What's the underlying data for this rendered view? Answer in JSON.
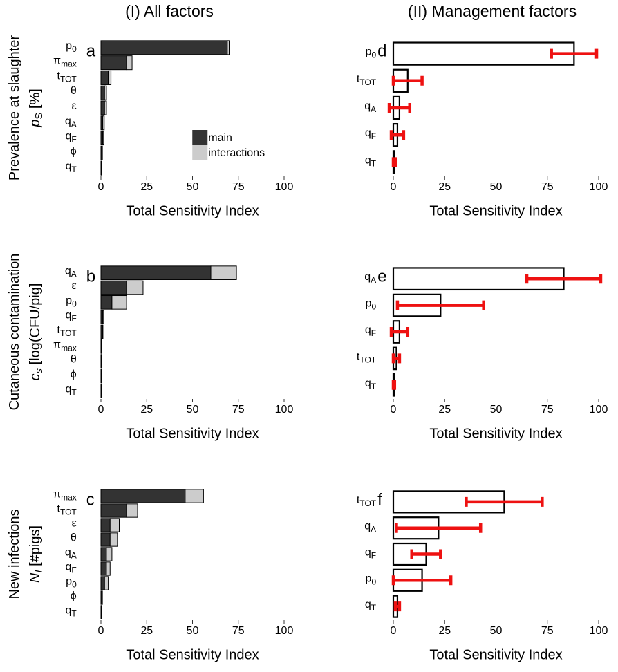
{
  "column_titles": [
    "(I) All factors",
    "(II) Management factors"
  ],
  "chart_data": [
    {
      "type": "stacked_bar",
      "label": "a",
      "xlabel": "Total Sensitivity Index",
      "xlim": [
        -5,
        105
      ],
      "xticks": [
        0,
        25,
        50,
        75,
        100
      ],
      "legend": "bottom-right",
      "ylabel": [
        {
          "parts": [
            {
              "text": "Prevalence at slaughter"
            }
          ]
        },
        {
          "parts": [
            {
              "text": "p",
              "style": "italic"
            },
            {
              "text": "S",
              "style": "sub"
            },
            {
              "text": " [%]"
            }
          ]
        }
      ],
      "categories": [
        {
          "parts": [
            {
              "text": "p"
            },
            {
              "text": "0",
              "style": "sub"
            }
          ],
          "color": "#000000"
        },
        {
          "parts": [
            {
              "text": "π"
            },
            {
              "text": "max",
              "style": "sub"
            }
          ],
          "color": "#e41a1c"
        },
        {
          "parts": [
            {
              "text": "t"
            },
            {
              "text": "TOT",
              "style": "sub"
            }
          ],
          "color": "#000000"
        },
        {
          "parts": [
            {
              "text": "θ"
            }
          ],
          "color": "#e41a1c"
        },
        {
          "parts": [
            {
              "text": "ε"
            }
          ],
          "color": "#e41a1c"
        },
        {
          "parts": [
            {
              "text": "q"
            },
            {
              "text": "A",
              "style": "sub"
            }
          ],
          "color": "#000000"
        },
        {
          "parts": [
            {
              "text": "q"
            },
            {
              "text": "F",
              "style": "sub"
            }
          ],
          "color": "#000000"
        },
        {
          "parts": [
            {
              "text": "ϕ"
            }
          ],
          "color": "#e41a1c"
        },
        {
          "parts": [
            {
              "text": "q"
            },
            {
              "text": "T",
              "style": "sub"
            }
          ],
          "color": "#000000"
        }
      ],
      "series": [
        {
          "name": "main",
          "color": "#333333",
          "values": [
            69,
            14,
            4,
            2,
            2,
            1,
            1,
            0.5,
            0.3
          ]
        },
        {
          "name": "interactions",
          "color": "#cccccc",
          "values": [
            1,
            3,
            1.5,
            1,
            1,
            0.8,
            0.5,
            0.3,
            0.2
          ]
        }
      ]
    },
    {
      "type": "stacked_bar",
      "label": "b",
      "xlabel": "Total Sensitivity Index",
      "xlim": [
        -5,
        105
      ],
      "xticks": [
        0,
        25,
        50,
        75,
        100
      ],
      "ylabel": [
        {
          "parts": [
            {
              "text": "Cutaneous contamination"
            }
          ]
        },
        {
          "parts": [
            {
              "text": "c",
              "style": "italic"
            },
            {
              "text": "s",
              "style": "sub-italic"
            },
            {
              "text": "  [log(CFU/pig]"
            }
          ]
        }
      ],
      "categories": [
        {
          "parts": [
            {
              "text": "q"
            },
            {
              "text": "A",
              "style": "sub"
            }
          ],
          "color": "#000000"
        },
        {
          "parts": [
            {
              "text": "ε"
            }
          ],
          "color": "#e41a1c"
        },
        {
          "parts": [
            {
              "text": "p"
            },
            {
              "text": "0",
              "style": "sub"
            }
          ],
          "color": "#000000"
        },
        {
          "parts": [
            {
              "text": "q"
            },
            {
              "text": "F",
              "style": "sub"
            }
          ],
          "color": "#000000"
        },
        {
          "parts": [
            {
              "text": "t"
            },
            {
              "text": "TOT",
              "style": "sub"
            }
          ],
          "color": "#000000"
        },
        {
          "parts": [
            {
              "text": "π"
            },
            {
              "text": "max",
              "style": "sub"
            }
          ],
          "color": "#e41a1c"
        },
        {
          "parts": [
            {
              "text": "θ"
            }
          ],
          "color": "#e41a1c"
        },
        {
          "parts": [
            {
              "text": "ϕ"
            }
          ],
          "color": "#e41a1c"
        },
        {
          "parts": [
            {
              "text": "q"
            },
            {
              "text": "T",
              "style": "sub"
            }
          ],
          "color": "#000000"
        }
      ],
      "series": [
        {
          "name": "main",
          "color": "#333333",
          "values": [
            60,
            14,
            6,
            1,
            0.8,
            0.3,
            0.2,
            0.2,
            0.1
          ]
        },
        {
          "name": "interactions",
          "color": "#cccccc",
          "values": [
            14,
            9,
            8,
            0.5,
            0.3,
            0.2,
            0.2,
            0.1,
            0.1
          ]
        }
      ]
    },
    {
      "type": "stacked_bar",
      "label": "c",
      "xlabel": "Total Sensitivity Index",
      "xlim": [
        -5,
        105
      ],
      "xticks": [
        0,
        25,
        50,
        75,
        100
      ],
      "ylabel": [
        {
          "parts": [
            {
              "text": "New infections"
            }
          ]
        },
        {
          "parts": [
            {
              "text": "N",
              "style": "italic"
            },
            {
              "text": "I",
              "style": "sub-italic"
            },
            {
              "text": "  [#pigs]"
            }
          ]
        }
      ],
      "categories": [
        {
          "parts": [
            {
              "text": "π"
            },
            {
              "text": "max",
              "style": "sub"
            }
          ],
          "color": "#e41a1c"
        },
        {
          "parts": [
            {
              "text": "t"
            },
            {
              "text": "TOT",
              "style": "sub"
            }
          ],
          "color": "#000000"
        },
        {
          "parts": [
            {
              "text": "ε"
            }
          ],
          "color": "#e41a1c"
        },
        {
          "parts": [
            {
              "text": "θ"
            }
          ],
          "color": "#e41a1c"
        },
        {
          "parts": [
            {
              "text": "q"
            },
            {
              "text": "A",
              "style": "sub"
            }
          ],
          "color": "#000000"
        },
        {
          "parts": [
            {
              "text": "q"
            },
            {
              "text": "F",
              "style": "sub"
            }
          ],
          "color": "#000000"
        },
        {
          "parts": [
            {
              "text": "p"
            },
            {
              "text": "0",
              "style": "sub"
            }
          ],
          "color": "#000000"
        },
        {
          "parts": [
            {
              "text": "ϕ"
            }
          ],
          "color": "#e41a1c"
        },
        {
          "parts": [
            {
              "text": "q"
            },
            {
              "text": "T",
              "style": "sub"
            }
          ],
          "color": "#000000"
        }
      ],
      "series": [
        {
          "name": "main",
          "color": "#333333",
          "values": [
            46,
            14,
            5,
            5,
            3,
            3,
            2,
            0.5,
            0.3
          ]
        },
        {
          "name": "interactions",
          "color": "#cccccc",
          "values": [
            10,
            6,
            5,
            4,
            3,
            2,
            2,
            0.3,
            0.2
          ]
        }
      ]
    },
    {
      "type": "error_bar",
      "label": "d",
      "xlabel": "Total Sensitivity Index",
      "xlim": [
        -5,
        105
      ],
      "xticks": [
        0,
        25,
        50,
        75,
        100
      ],
      "color": "#ffffff",
      "error_color": "#ee1111",
      "categories": [
        {
          "parts": [
            {
              "text": "p"
            },
            {
              "text": "0",
              "style": "sub"
            }
          ],
          "color": "#000000"
        },
        {
          "parts": [
            {
              "text": "t"
            },
            {
              "text": "TOT",
              "style": "sub"
            }
          ],
          "color": "#000000"
        },
        {
          "parts": [
            {
              "text": "q"
            },
            {
              "text": "A",
              "style": "sub"
            }
          ],
          "color": "#000000"
        },
        {
          "parts": [
            {
              "text": "q"
            },
            {
              "text": "F",
              "style": "sub"
            }
          ],
          "color": "#000000"
        },
        {
          "parts": [
            {
              "text": "q"
            },
            {
              "text": "T",
              "style": "sub"
            }
          ],
          "color": "#000000"
        }
      ],
      "values": [
        88,
        7,
        3,
        2,
        0.5
      ],
      "errors": [
        11,
        7,
        5,
        3,
        0.5
      ]
    },
    {
      "type": "error_bar",
      "label": "e",
      "xlabel": "Total Sensitivity Index",
      "xlim": [
        -5,
        105
      ],
      "xticks": [
        0,
        25,
        50,
        75,
        100
      ],
      "color": "#ffffff",
      "error_color": "#ee1111",
      "categories": [
        {
          "parts": [
            {
              "text": "q"
            },
            {
              "text": "A",
              "style": "sub"
            }
          ],
          "color": "#000000"
        },
        {
          "parts": [
            {
              "text": "p"
            },
            {
              "text": "0",
              "style": "sub"
            }
          ],
          "color": "#000000"
        },
        {
          "parts": [
            {
              "text": "q"
            },
            {
              "text": "F",
              "style": "sub"
            }
          ],
          "color": "#000000"
        },
        {
          "parts": [
            {
              "text": "t"
            },
            {
              "text": "TOT",
              "style": "sub"
            }
          ],
          "color": "#000000"
        },
        {
          "parts": [
            {
              "text": "q"
            },
            {
              "text": "T",
              "style": "sub"
            }
          ],
          "color": "#000000"
        }
      ],
      "values": [
        83,
        23,
        3,
        1.5,
        0.3
      ],
      "errors": [
        18,
        21,
        4,
        1.5,
        0.3
      ]
    },
    {
      "type": "error_bar",
      "label": "f",
      "xlabel": "Total Sensitivity Index",
      "xlim": [
        -5,
        105
      ],
      "xticks": [
        0,
        25,
        50,
        75,
        100
      ],
      "color": "#ffffff",
      "error_color": "#ee1111",
      "categories": [
        {
          "parts": [
            {
              "text": "t"
            },
            {
              "text": "TOT",
              "style": "sub"
            }
          ],
          "color": "#000000"
        },
        {
          "parts": [
            {
              "text": "q"
            },
            {
              "text": "A",
              "style": "sub"
            }
          ],
          "color": "#000000"
        },
        {
          "parts": [
            {
              "text": "q"
            },
            {
              "text": "F",
              "style": "sub"
            }
          ],
          "color": "#000000"
        },
        {
          "parts": [
            {
              "text": "p"
            },
            {
              "text": "0",
              "style": "sub"
            }
          ],
          "color": "#000000"
        },
        {
          "parts": [
            {
              "text": "q"
            },
            {
              "text": "T",
              "style": "sub"
            }
          ],
          "color": "#000000"
        }
      ],
      "values": [
        54,
        22,
        16,
        14,
        2
      ],
      "errors": [
        18.5,
        20.5,
        7,
        14,
        1
      ]
    }
  ]
}
